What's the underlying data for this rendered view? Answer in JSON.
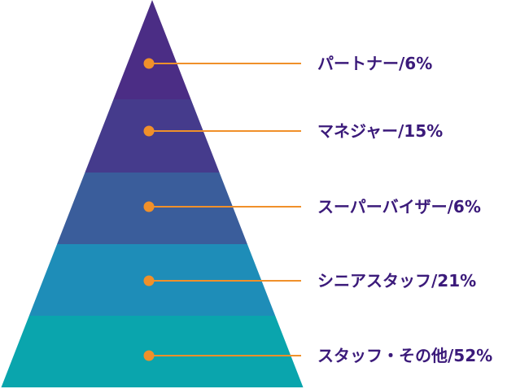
{
  "chart_data": {
    "type": "pyramid",
    "tiers": [
      {
        "label": "パートナー/6%",
        "category": "パートナー",
        "value": 6,
        "color": "#4b2d85"
      },
      {
        "label": "マネジャー/15%",
        "category": "マネジャー",
        "value": 15,
        "color": "#453b8c"
      },
      {
        "label": "スーパーバイザー/6%",
        "category": "スーパーバイザー",
        "value": 6,
        "color": "#3a5d9b"
      },
      {
        "label": "シニアスタッフ/21%",
        "category": "シニアスタッフ",
        "value": 21,
        "color": "#1e8db8"
      },
      {
        "label": "スタッフ・その他/52%",
        "category": "スタッフ・その他",
        "value": 52,
        "color": "#0aa5ad"
      }
    ],
    "colors": {
      "label_text": "#3b1a7a",
      "marker": "#f0902a",
      "connector": "#f0902a"
    }
  }
}
